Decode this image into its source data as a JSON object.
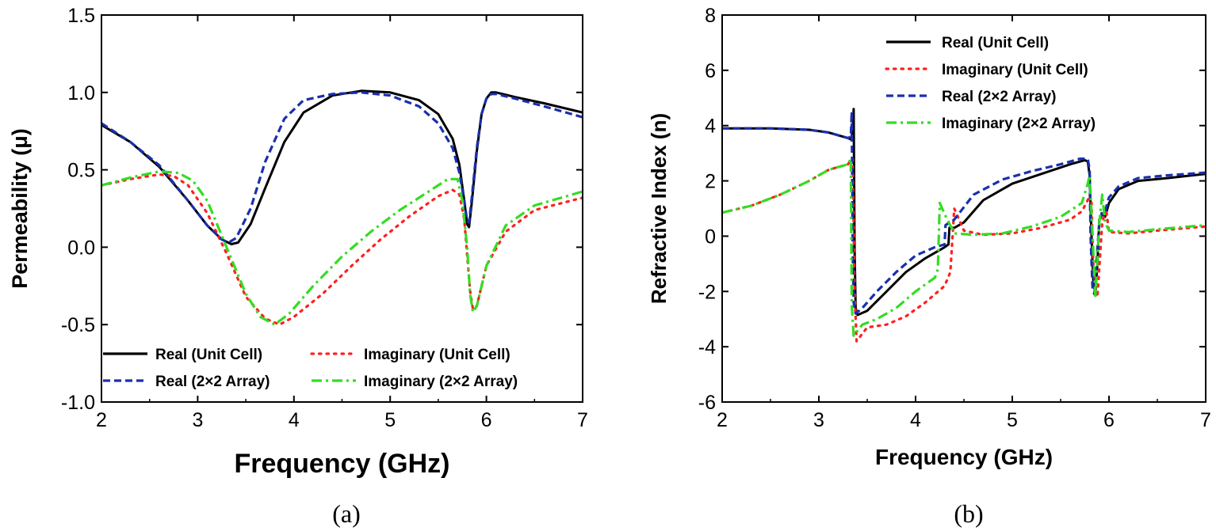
{
  "chart_data": [
    {
      "type": "line",
      "caption": "(a)",
      "xlabel": "Frequency (GHz)",
      "ylabel": "Permeability (μ)",
      "xlim": [
        2,
        7
      ],
      "ylim": [
        -1.0,
        1.5
      ],
      "xticks": [
        2,
        3,
        4,
        5,
        6,
        7
      ],
      "yticks": [
        -1.0,
        -0.5,
        0.0,
        0.5,
        1.0,
        1.5
      ],
      "ytick_labels": [
        "-1.0",
        "-0.5",
        "0.0",
        "0.5",
        "1.0",
        "1.5"
      ],
      "legend_position": "bottom",
      "series": [
        {
          "name": "Real (Unit Cell)",
          "color": "#000000",
          "style": "solid",
          "x": [
            2.0,
            2.3,
            2.6,
            2.9,
            3.1,
            3.25,
            3.35,
            3.42,
            3.55,
            3.7,
            3.9,
            4.1,
            4.4,
            4.7,
            5.0,
            5.3,
            5.5,
            5.65,
            5.72,
            5.77,
            5.8,
            5.82,
            5.85,
            5.9,
            5.95,
            6.0,
            6.05,
            6.1,
            6.3,
            6.6,
            7.0
          ],
          "y": [
            0.79,
            0.68,
            0.52,
            0.3,
            0.14,
            0.05,
            0.02,
            0.03,
            0.15,
            0.38,
            0.68,
            0.87,
            0.98,
            1.01,
            1.0,
            0.95,
            0.86,
            0.7,
            0.53,
            0.3,
            0.15,
            0.13,
            0.3,
            0.62,
            0.86,
            0.96,
            1.0,
            1.0,
            0.97,
            0.93,
            0.87
          ]
        },
        {
          "name": "Imaginary (Unit Cell)",
          "color": "#ff2020",
          "style": "dotted",
          "x": [
            2.0,
            2.3,
            2.6,
            2.75,
            2.9,
            3.1,
            3.3,
            3.5,
            3.7,
            3.85,
            4.0,
            4.3,
            4.6,
            4.9,
            5.2,
            5.5,
            5.65,
            5.72,
            5.77,
            5.8,
            5.83,
            5.86,
            5.9,
            6.0,
            6.2,
            6.5,
            7.0
          ],
          "y": [
            0.4,
            0.44,
            0.47,
            0.46,
            0.4,
            0.22,
            -0.04,
            -0.32,
            -0.46,
            -0.5,
            -0.45,
            -0.3,
            -0.12,
            0.05,
            0.2,
            0.33,
            0.37,
            0.34,
            0.18,
            -0.05,
            -0.28,
            -0.4,
            -0.38,
            -0.12,
            0.1,
            0.24,
            0.32
          ]
        },
        {
          "name": "Real (2×2 Array)",
          "color": "#1a2fb0",
          "style": "dashed",
          "x": [
            2.0,
            2.3,
            2.6,
            2.9,
            3.1,
            3.25,
            3.32,
            3.4,
            3.55,
            3.7,
            3.9,
            4.1,
            4.4,
            4.7,
            5.0,
            5.3,
            5.5,
            5.65,
            5.72,
            5.77,
            5.8,
            5.82,
            5.85,
            5.9,
            5.95,
            6.0,
            6.05,
            6.1,
            6.3,
            6.6,
            7.0
          ],
          "y": [
            0.8,
            0.68,
            0.53,
            0.3,
            0.14,
            0.05,
            0.03,
            0.06,
            0.25,
            0.55,
            0.83,
            0.95,
            0.99,
            1.0,
            0.98,
            0.91,
            0.8,
            0.64,
            0.48,
            0.3,
            0.17,
            0.16,
            0.33,
            0.64,
            0.86,
            0.96,
            0.99,
            0.99,
            0.96,
            0.91,
            0.84
          ]
        },
        {
          "name": "Imaginary (2×2 Array)",
          "color": "#33dd22",
          "style": "dashdot",
          "x": [
            2.0,
            2.3,
            2.6,
            2.8,
            2.95,
            3.1,
            3.3,
            3.5,
            3.65,
            3.8,
            3.95,
            4.2,
            4.5,
            4.8,
            5.1,
            5.4,
            5.6,
            5.7,
            5.75,
            5.8,
            5.83,
            5.86,
            5.9,
            6.0,
            6.2,
            6.5,
            7.0
          ],
          "y": [
            0.4,
            0.45,
            0.49,
            0.48,
            0.43,
            0.3,
            0.0,
            -0.3,
            -0.45,
            -0.5,
            -0.43,
            -0.25,
            -0.06,
            0.1,
            0.24,
            0.36,
            0.44,
            0.44,
            0.3,
            0.0,
            -0.3,
            -0.42,
            -0.38,
            -0.12,
            0.14,
            0.27,
            0.36
          ]
        }
      ]
    },
    {
      "type": "line",
      "caption": "(b)",
      "xlabel": "Frequency (GHz)",
      "ylabel": "Refractive Index (n)",
      "xlim": [
        2,
        7
      ],
      "ylim": [
        -6,
        8
      ],
      "xticks": [
        2,
        3,
        4,
        5,
        6,
        7
      ],
      "yticks": [
        -6,
        -4,
        -2,
        0,
        2,
        4,
        6,
        8
      ],
      "ytick_labels": [
        "-6",
        "-4",
        "-2",
        "0",
        "2",
        "4",
        "6",
        "8"
      ],
      "legend_position": "top-right",
      "series": [
        {
          "name": "Real (Unit Cell)",
          "color": "#000000",
          "style": "solid",
          "x": [
            2.0,
            2.5,
            2.9,
            3.1,
            3.25,
            3.3,
            3.33,
            3.35,
            3.36,
            3.37,
            3.38,
            3.4,
            3.5,
            3.7,
            3.9,
            4.1,
            4.3,
            4.34,
            4.35,
            4.4,
            4.5,
            4.7,
            5.0,
            5.3,
            5.6,
            5.75,
            5.78,
            5.8,
            5.82,
            5.84,
            5.86,
            5.88,
            5.9,
            5.93,
            5.96,
            6.0,
            6.1,
            6.3,
            6.6,
            7.0
          ],
          "y": [
            3.9,
            3.9,
            3.85,
            3.75,
            3.6,
            3.55,
            3.5,
            3.8,
            4.6,
            -0.5,
            -2.6,
            -2.85,
            -2.7,
            -2.0,
            -1.3,
            -0.8,
            -0.4,
            -0.3,
            0.3,
            0.3,
            0.5,
            1.3,
            1.9,
            2.25,
            2.6,
            2.75,
            2.7,
            2.2,
            0.0,
            -1.8,
            -2.0,
            -1.0,
            0.6,
            0.8,
            0.7,
            1.2,
            1.7,
            2.0,
            2.1,
            2.25
          ]
        },
        {
          "name": "Imaginary (Unit Cell)",
          "color": "#ff2020",
          "style": "dotted",
          "x": [
            2.0,
            2.3,
            2.6,
            2.9,
            3.1,
            3.3,
            3.35,
            3.37,
            3.39,
            3.5,
            3.7,
            3.9,
            4.1,
            4.3,
            4.36,
            4.4,
            4.5,
            4.7,
            5.0,
            5.3,
            5.6,
            5.72,
            5.78,
            5.8,
            5.82,
            5.84,
            5.88,
            5.93,
            5.97,
            6.0,
            6.2,
            6.5,
            7.0
          ],
          "y": [
            0.85,
            1.1,
            1.5,
            2.0,
            2.4,
            2.6,
            2.8,
            -2.0,
            -3.8,
            -3.3,
            -3.2,
            -2.9,
            -2.4,
            -1.8,
            -1.3,
            1.0,
            0.2,
            0.05,
            0.1,
            0.3,
            0.6,
            0.9,
            1.3,
            1.5,
            1.2,
            -1.3,
            -2.2,
            0.5,
            1.0,
            0.15,
            0.1,
            0.2,
            0.35
          ]
        },
        {
          "name": "Real (2×2 Array)",
          "color": "#1a2fb0",
          "style": "dashed",
          "x": [
            2.0,
            2.5,
            2.9,
            3.1,
            3.25,
            3.3,
            3.33,
            3.34,
            3.35,
            3.36,
            3.38,
            3.45,
            3.6,
            3.8,
            4.0,
            4.2,
            4.3,
            4.31,
            4.4,
            4.6,
            4.9,
            5.2,
            5.5,
            5.7,
            5.78,
            5.8,
            5.81,
            5.83,
            5.85,
            5.87,
            5.9,
            5.93,
            5.96,
            6.0,
            6.1,
            6.3,
            6.6,
            7.0
          ],
          "y": [
            3.9,
            3.9,
            3.85,
            3.75,
            3.6,
            3.55,
            3.6,
            4.5,
            -0.5,
            -2.4,
            -2.8,
            -2.6,
            -2.0,
            -1.3,
            -0.7,
            -0.4,
            -0.3,
            0.4,
            0.6,
            1.5,
            2.05,
            2.35,
            2.6,
            2.8,
            2.8,
            2.4,
            0.0,
            -1.9,
            -2.1,
            -1.0,
            0.5,
            0.9,
            0.9,
            1.4,
            1.8,
            2.1,
            2.2,
            2.3
          ]
        },
        {
          "name": "Imaginary (2×2 Array)",
          "color": "#33dd22",
          "style": "dashdot",
          "x": [
            2.0,
            2.3,
            2.6,
            2.9,
            3.1,
            3.3,
            3.33,
            3.34,
            3.36,
            3.45,
            3.6,
            3.8,
            4.0,
            4.2,
            4.23,
            4.25,
            4.3,
            4.4,
            4.6,
            4.9,
            5.2,
            5.5,
            5.72,
            5.78,
            5.8,
            5.83,
            5.86,
            5.9,
            5.93,
            5.96,
            6.0,
            6.2,
            6.5,
            7.0
          ],
          "y": [
            0.85,
            1.1,
            1.5,
            2.0,
            2.4,
            2.6,
            2.8,
            -2.5,
            -3.6,
            -3.2,
            -3.0,
            -2.6,
            -2.0,
            -1.5,
            -1.2,
            1.2,
            0.8,
            0.1,
            0.05,
            0.1,
            0.35,
            0.7,
            1.2,
            1.9,
            2.2,
            0.0,
            -2.2,
            0.5,
            1.5,
            0.5,
            0.2,
            0.15,
            0.25,
            0.4
          ]
        }
      ]
    }
  ]
}
